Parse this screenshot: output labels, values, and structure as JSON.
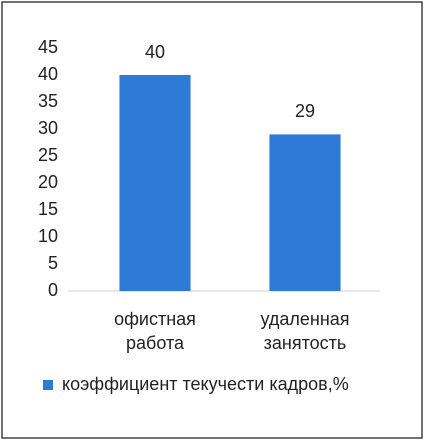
{
  "chart_data": {
    "type": "bar",
    "categories": [
      "офистная работа",
      "удаленная занятость"
    ],
    "series": [
      {
        "name": "коэффициент текучести кадров,%",
        "color": "#2e7bd6",
        "values": [
          40,
          29
        ]
      }
    ],
    "ylim": [
      0,
      45
    ],
    "yticks": [
      0,
      5,
      10,
      15,
      20,
      25,
      30,
      35,
      40,
      45
    ],
    "grid": false,
    "legend": "bottom"
  }
}
